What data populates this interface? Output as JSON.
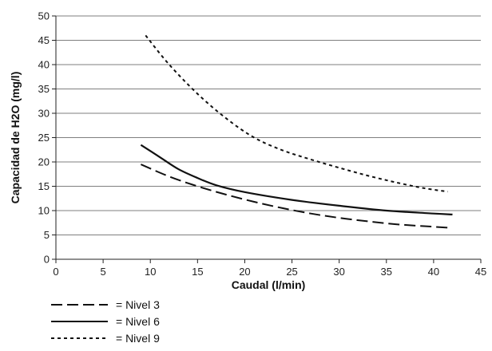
{
  "chart_data": {
    "type": "line",
    "title": "",
    "xlabel": "Caudal (l/min)",
    "ylabel": "Capacidad de H2O (mg/l)",
    "xlim": [
      0,
      45
    ],
    "ylim": [
      0,
      50
    ],
    "xticks": [
      0,
      5,
      10,
      15,
      20,
      25,
      30,
      35,
      40,
      45
    ],
    "yticks": [
      0,
      5,
      10,
      15,
      20,
      25,
      30,
      35,
      40,
      45,
      50
    ],
    "grid": "horizontal",
    "legend_position": "bottom-left",
    "series": [
      {
        "name": "= Nivel 3",
        "style": "dashed",
        "color": "#111111",
        "x": [
          9,
          12,
          15,
          18,
          21,
          24,
          27,
          30,
          33,
          36,
          39,
          41.5
        ],
        "y": [
          19.5,
          17.0,
          15.0,
          13.3,
          11.8,
          10.5,
          9.4,
          8.5,
          7.8,
          7.2,
          6.8,
          6.5
        ]
      },
      {
        "name": "= Nivel 6",
        "style": "solid",
        "color": "#111111",
        "x": [
          9,
          11,
          13,
          15,
          17,
          20,
          25,
          30,
          35,
          40,
          42
        ],
        "y": [
          23.5,
          21.0,
          18.5,
          16.7,
          15.2,
          13.8,
          12.2,
          11.0,
          10.0,
          9.4,
          9.2
        ]
      },
      {
        "name": "= Nivel 9",
        "style": "dotted",
        "color": "#111111",
        "x": [
          9.5,
          12,
          15,
          18,
          21,
          24,
          27,
          30,
          33,
          36,
          39,
          41.5
        ],
        "y": [
          46.0,
          40.0,
          34.0,
          29.0,
          25.0,
          22.4,
          20.5,
          18.8,
          17.2,
          15.8,
          14.6,
          13.9
        ]
      }
    ]
  }
}
